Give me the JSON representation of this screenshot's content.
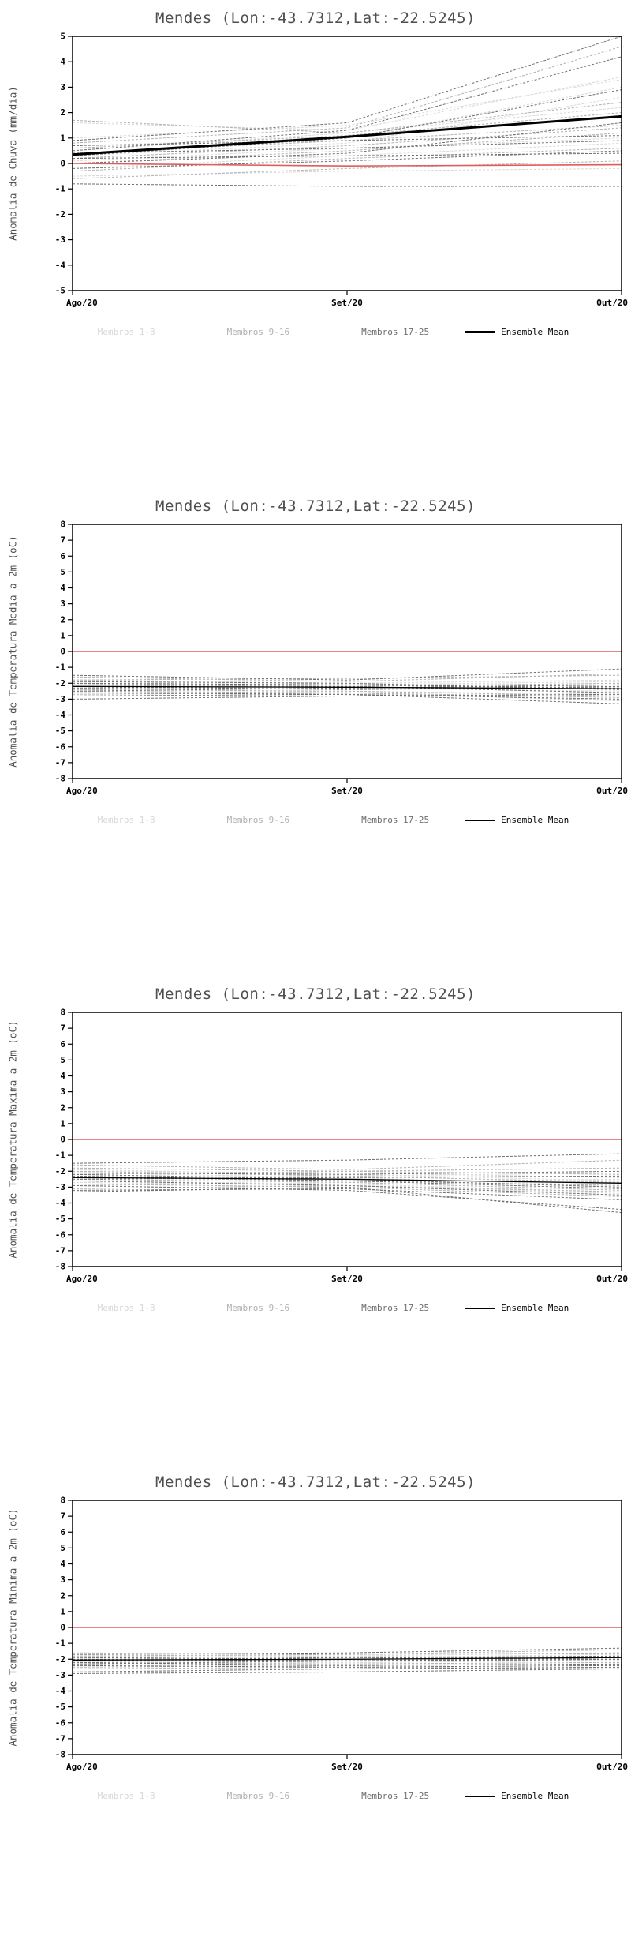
{
  "legend_note": "shared legend rendered under every chart",
  "chart_data": [
    {
      "type": "line",
      "title": "Mendes (Lon:-43.7312,Lat:-22.5245)",
      "ylabel": "Anomalia de Chuva (mm/dia)",
      "ylim": [
        -5,
        5
      ],
      "ytick_step": 1,
      "x_labels": [
        "Ago/20",
        "Set/20",
        "Out/20"
      ],
      "grid": false,
      "legend_position": "bottom",
      "zero_line": {
        "color": "#e05c5c",
        "values": [
          0.0,
          -0.1,
          -0.05
        ]
      },
      "mean": {
        "label": "Ensemble Mean",
        "color": "#000000",
        "width": 3,
        "values": [
          0.35,
          1.05,
          1.85
        ]
      },
      "member_groups": [
        {
          "label": "Membros 1-8",
          "color": "#d8d8d8",
          "members": [
            [
              1.6,
              1.3,
              3.4
            ],
            [
              0.7,
              1.0,
              3.0
            ],
            [
              0.3,
              0.8,
              2.6
            ],
            [
              0.1,
              0.6,
              1.0
            ],
            [
              -0.2,
              0.3,
              0.8
            ],
            [
              0.5,
              1.2,
              2.2
            ],
            [
              1.0,
              1.5,
              3.3
            ],
            [
              -0.5,
              -0.3,
              -0.2
            ]
          ]
        },
        {
          "label": "Membros 9-16",
          "color": "#b0b0b0",
          "members": [
            [
              1.7,
              1.2,
              2.4
            ],
            [
              0.8,
              1.4,
              4.6
            ],
            [
              0.4,
              0.9,
              1.5
            ],
            [
              0.0,
              0.5,
              1.2
            ],
            [
              -0.3,
              0.2,
              0.6
            ],
            [
              0.6,
              1.1,
              2.0
            ],
            [
              0.2,
              0.7,
              1.4
            ],
            [
              -0.6,
              -0.2,
              0.1
            ]
          ]
        },
        {
          "label": "Membros 17-25",
          "color": "#6e6e6e",
          "members": [
            [
              0.9,
              1.6,
              5.0
            ],
            [
              0.5,
              1.3,
              4.2
            ],
            [
              0.3,
              1.0,
              2.9
            ],
            [
              0.0,
              0.4,
              1.6
            ],
            [
              -0.2,
              0.1,
              0.5
            ],
            [
              0.7,
              0.9,
              1.1
            ],
            [
              0.4,
              0.6,
              0.9
            ],
            [
              -0.8,
              -0.9,
              -0.9
            ],
            [
              0.2,
              0.3,
              0.4
            ]
          ]
        }
      ]
    },
    {
      "type": "line",
      "title": "Mendes (Lon:-43.7312,Lat:-22.5245)",
      "ylabel": "Anomalia de Temperatura Media a 2m (oC)",
      "ylim": [
        -8,
        8
      ],
      "ytick_step": 1,
      "x_labels": [
        "Ago/20",
        "Set/20",
        "Out/20"
      ],
      "grid": false,
      "legend_position": "bottom",
      "zero_line": {
        "color": "#e05c5c",
        "values": [
          0,
          0,
          0
        ]
      },
      "mean": {
        "label": "Ensemble Mean",
        "color": "#000000",
        "width": 1.3,
        "values": [
          -2.2,
          -2.25,
          -2.35
        ]
      },
      "member_groups": [
        {
          "label": "Membros 1-8",
          "color": "#d8d8d8",
          "members": [
            [
              -1.8,
              -2.0,
              -2.2
            ],
            [
              -2.0,
              -2.1,
              -1.9
            ],
            [
              -2.2,
              -2.3,
              -2.5
            ],
            [
              -2.4,
              -2.2,
              -2.0
            ],
            [
              -2.6,
              -2.5,
              -2.7
            ],
            [
              -1.9,
              -2.2,
              -2.6
            ],
            [
              -2.1,
              -2.0,
              -1.8
            ],
            [
              -2.3,
              -2.4,
              -2.3
            ]
          ]
        },
        {
          "label": "Membros 9-16",
          "color": "#b0b0b0",
          "members": [
            [
              -1.6,
              -1.9,
              -1.4
            ],
            [
              -2.5,
              -2.6,
              -2.9
            ],
            [
              -2.0,
              -2.3,
              -2.1
            ],
            [
              -2.2,
              -2.1,
              -2.4
            ],
            [
              -2.7,
              -2.6,
              -3.1
            ],
            [
              -1.8,
              -1.7,
              -1.5
            ],
            [
              -2.4,
              -2.5,
              -2.8
            ],
            [
              -2.1,
              -2.2,
              -2.0
            ]
          ]
        },
        {
          "label": "Membros 17-25",
          "color": "#6e6e6e",
          "members": [
            [
              -1.5,
              -1.8,
              -1.1
            ],
            [
              -2.6,
              -2.7,
              -3.3
            ],
            [
              -2.3,
              -2.2,
              -2.6
            ],
            [
              -2.0,
              -2.1,
              -2.3
            ],
            [
              -2.8,
              -2.7,
              -3.0
            ],
            [
              -2.2,
              -2.4,
              -2.2
            ],
            [
              -2.5,
              -2.3,
              -2.1
            ],
            [
              -3.0,
              -2.8,
              -2.7
            ],
            [
              -1.9,
              -2.0,
              -2.4
            ]
          ]
        }
      ]
    },
    {
      "type": "line",
      "title": "Mendes (Lon:-43.7312,Lat:-22.5245)",
      "ylabel": "Anomalia de Temperatura Maxima a 2m (oC)",
      "ylim": [
        -8,
        8
      ],
      "ytick_step": 1,
      "x_labels": [
        "Ago/20",
        "Set/20",
        "Out/20"
      ],
      "grid": false,
      "legend_position": "bottom",
      "zero_line": {
        "color": "#e05c5c",
        "values": [
          0,
          0,
          0
        ]
      },
      "mean": {
        "label": "Ensemble Mean",
        "color": "#000000",
        "width": 1.3,
        "values": [
          -2.4,
          -2.5,
          -2.75
        ]
      },
      "member_groups": [
        {
          "label": "Membros 1-8",
          "color": "#d8d8d8",
          "members": [
            [
              -1.9,
              -2.2,
              -2.6
            ],
            [
              -2.1,
              -2.4,
              -2.9
            ],
            [
              -2.4,
              -2.3,
              -2.1
            ],
            [
              -2.6,
              -2.8,
              -3.3
            ],
            [
              -2.9,
              -2.7,
              -2.5
            ],
            [
              -2.0,
              -2.1,
              -2.4
            ],
            [
              -2.3,
              -2.5,
              -3.0
            ],
            [
              -2.7,
              -2.9,
              -3.4
            ]
          ]
        },
        {
          "label": "Membros 9-16",
          "color": "#b0b0b0",
          "members": [
            [
              -1.6,
              -1.9,
              -1.3
            ],
            [
              -2.5,
              -2.7,
              -3.2
            ],
            [
              -2.2,
              -2.0,
              -1.8
            ],
            [
              -2.8,
              -3.0,
              -3.6
            ],
            [
              -3.1,
              -2.9,
              -3.3
            ],
            [
              -1.8,
              -2.0,
              -2.2
            ],
            [
              -2.4,
              -2.6,
              -2.9
            ],
            [
              -2.0,
              -2.3,
              -2.7
            ]
          ]
        },
        {
          "label": "Membros 17-25",
          "color": "#6e6e6e",
          "members": [
            [
              -1.5,
              -1.3,
              -0.9
            ],
            [
              -2.6,
              -2.9,
              -3.5
            ],
            [
              -2.3,
              -2.6,
              -3.1
            ],
            [
              -3.2,
              -3.1,
              -3.8
            ],
            [
              -2.1,
              -2.2,
              -2.0
            ],
            [
              -2.9,
              -3.2,
              -4.4
            ],
            [
              -2.5,
              -2.4,
              -2.3
            ],
            [
              -3.3,
              -3.0,
              -4.6
            ],
            [
              -2.2,
              -2.5,
              -3.0
            ]
          ]
        }
      ]
    },
    {
      "type": "line",
      "title": "Mendes (Lon:-43.7312,Lat:-22.5245)",
      "ylabel": "Anomalia de Temperatura Minima a 2m (oC)",
      "ylim": [
        -8,
        8
      ],
      "ytick_step": 1,
      "x_labels": [
        "Ago/20",
        "Set/20",
        "Out/20"
      ],
      "grid": false,
      "legend_position": "bottom",
      "zero_line": {
        "color": "#e05c5c",
        "values": [
          0,
          0,
          0
        ]
      },
      "mean": {
        "label": "Ensemble Mean",
        "color": "#000000",
        "width": 1.3,
        "values": [
          -2.05,
          -2.0,
          -1.9
        ]
      },
      "member_groups": [
        {
          "label": "Membros 1-8",
          "color": "#d8d8d8",
          "members": [
            [
              -1.8,
              -1.9,
              -1.7
            ],
            [
              -2.0,
              -2.1,
              -2.0
            ],
            [
              -2.2,
              -2.0,
              -1.9
            ],
            [
              -1.9,
              -1.8,
              -1.6
            ],
            [
              -2.4,
              -2.3,
              -2.2
            ],
            [
              -2.1,
              -2.2,
              -2.1
            ],
            [
              -1.7,
              -1.8,
              -1.9
            ],
            [
              -2.3,
              -2.2,
              -2.4
            ]
          ]
        },
        {
          "label": "Membros 9-16",
          "color": "#b0b0b0",
          "members": [
            [
              -1.6,
              -1.7,
              -1.4
            ],
            [
              -2.5,
              -2.4,
              -2.3
            ],
            [
              -2.0,
              -1.9,
              -1.8
            ],
            [
              -2.2,
              -2.3,
              -2.2
            ],
            [
              -1.9,
              -2.0,
              -2.1
            ],
            [
              -2.6,
              -2.5,
              -2.6
            ],
            [
              -1.8,
              -1.7,
              -1.6
            ],
            [
              -2.1,
              -2.0,
              -1.9
            ]
          ]
        },
        {
          "label": "Membros 17-25",
          "color": "#6e6e6e",
          "members": [
            [
              -1.7,
              -1.6,
              -1.3
            ],
            [
              -2.4,
              -2.5,
              -2.4
            ],
            [
              -2.9,
              -2.8,
              -2.6
            ],
            [
              -2.0,
              -2.1,
              -2.0
            ],
            [
              -2.3,
              -2.1,
              -1.9
            ],
            [
              -1.9,
              -2.0,
              -1.8
            ],
            [
              -2.2,
              -2.4,
              -2.3
            ],
            [
              -2.8,
              -2.6,
              -2.5
            ],
            [
              -2.1,
              -1.9,
              -2.0
            ]
          ]
        }
      ]
    }
  ]
}
